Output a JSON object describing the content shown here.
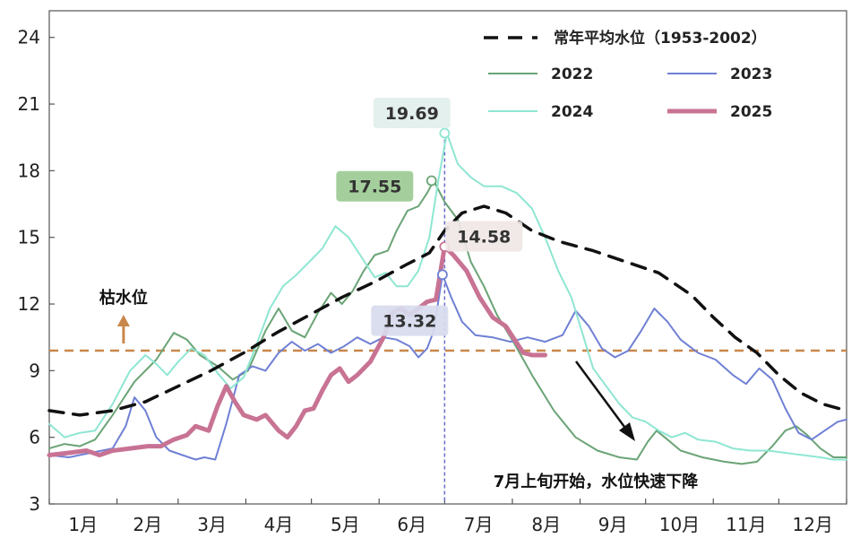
{
  "chart_data": {
    "type": "line",
    "x_unit_label": "月",
    "x_tick_labels": [
      "1月",
      "2月",
      "3月",
      "4月",
      "5月",
      "6月",
      "7月",
      "8月",
      "9月",
      "10月",
      "11月",
      "12月"
    ],
    "yticks": [
      3,
      6,
      9,
      12,
      15,
      18,
      21,
      24
    ],
    "ylim": [
      3,
      25.2
    ],
    "xlim": [
      1,
      366
    ],
    "legend": {
      "average_label": "常年平均水位（1953-2002）",
      "series_labels": [
        "2022",
        "2023",
        "2024",
        "2025"
      ]
    },
    "threshold": {
      "value": 9.9,
      "label": "枯水位",
      "color": "#c8874a"
    },
    "marker_day": 182,
    "callouts": [
      {
        "series": "2024",
        "day": 182,
        "value": 19.69,
        "label": "19.69",
        "bg": "#e2efec"
      },
      {
        "series": "2022",
        "day": 176,
        "value": 17.55,
        "label": "17.55",
        "bg": "#9ccb94"
      },
      {
        "series": "2025",
        "day": 182,
        "value": 14.58,
        "label": "14.58",
        "bg": "#f0e6e6"
      },
      {
        "series": "2023",
        "day": 181,
        "value": 13.32,
        "label": "13.32",
        "bg": "#d7dbee"
      }
    ],
    "annotation": "7月上旬开始，水位快速下降",
    "series": [
      {
        "name": "常年平均水位（1953-2002）",
        "color": "#111111",
        "dash": true,
        "width": 3.5,
        "points": [
          [
            1,
            7.2
          ],
          [
            15,
            7.0
          ],
          [
            30,
            7.2
          ],
          [
            45,
            7.6
          ],
          [
            60,
            8.3
          ],
          [
            75,
            9.0
          ],
          [
            90,
            9.8
          ],
          [
            105,
            10.7
          ],
          [
            120,
            11.5
          ],
          [
            135,
            12.3
          ],
          [
            150,
            13.0
          ],
          [
            165,
            13.8
          ],
          [
            175,
            14.3
          ],
          [
            182,
            15.3
          ],
          [
            190,
            16.1
          ],
          [
            200,
            16.4
          ],
          [
            210,
            16.1
          ],
          [
            222,
            15.3
          ],
          [
            235,
            14.8
          ],
          [
            250,
            14.4
          ],
          [
            265,
            13.9
          ],
          [
            280,
            13.4
          ],
          [
            295,
            12.4
          ],
          [
            305,
            11.4
          ],
          [
            315,
            10.5
          ],
          [
            325,
            9.8
          ],
          [
            335,
            8.8
          ],
          [
            345,
            8.0
          ],
          [
            355,
            7.5
          ],
          [
            366,
            7.2
          ]
        ]
      },
      {
        "name": "2022",
        "color": "#6aa476",
        "dash": false,
        "width": 2,
        "points": [
          [
            1,
            5.5
          ],
          [
            8,
            5.7
          ],
          [
            15,
            5.6
          ],
          [
            22,
            5.9
          ],
          [
            30,
            7.0
          ],
          [
            40,
            8.5
          ],
          [
            50,
            9.5
          ],
          [
            58,
            10.7
          ],
          [
            64,
            10.4
          ],
          [
            70,
            9.7
          ],
          [
            78,
            9.2
          ],
          [
            85,
            8.6
          ],
          [
            92,
            9.0
          ],
          [
            100,
            10.8
          ],
          [
            106,
            11.8
          ],
          [
            112,
            10.8
          ],
          [
            118,
            10.5
          ],
          [
            124,
            11.6
          ],
          [
            130,
            12.5
          ],
          [
            135,
            12.0
          ],
          [
            140,
            12.6
          ],
          [
            145,
            13.5
          ],
          [
            150,
            14.2
          ],
          [
            156,
            14.4
          ],
          [
            160,
            15.3
          ],
          [
            165,
            16.2
          ],
          [
            170,
            16.4
          ],
          [
            174,
            17.0
          ],
          [
            177,
            17.55
          ],
          [
            182,
            16.6
          ],
          [
            188,
            15.8
          ],
          [
            194,
            13.9
          ],
          [
            200,
            12.8
          ],
          [
            206,
            11.5
          ],
          [
            214,
            10.2
          ],
          [
            222,
            8.8
          ],
          [
            232,
            7.2
          ],
          [
            242,
            6.0
          ],
          [
            252,
            5.4
          ],
          [
            262,
            5.1
          ],
          [
            270,
            5.0
          ],
          [
            275,
            5.8
          ],
          [
            279,
            6.3
          ],
          [
            284,
            5.9
          ],
          [
            290,
            5.4
          ],
          [
            300,
            5.1
          ],
          [
            310,
            4.9
          ],
          [
            318,
            4.8
          ],
          [
            325,
            4.9
          ],
          [
            332,
            5.6
          ],
          [
            338,
            6.3
          ],
          [
            343,
            6.5
          ],
          [
            348,
            6.1
          ],
          [
            354,
            5.5
          ],
          [
            360,
            5.1
          ],
          [
            366,
            5.1
          ]
        ]
      },
      {
        "name": "2023",
        "color": "#6f80d4",
        "dash": false,
        "width": 2,
        "points": [
          [
            1,
            5.2
          ],
          [
            10,
            5.1
          ],
          [
            20,
            5.3
          ],
          [
            30,
            5.5
          ],
          [
            36,
            6.5
          ],
          [
            40,
            7.8
          ],
          [
            45,
            7.2
          ],
          [
            50,
            6.0
          ],
          [
            56,
            5.4
          ],
          [
            62,
            5.2
          ],
          [
            68,
            5.0
          ],
          [
            72,
            5.1
          ],
          [
            77,
            5.0
          ],
          [
            82,
            6.6
          ],
          [
            88,
            8.8
          ],
          [
            94,
            9.2
          ],
          [
            100,
            9.0
          ],
          [
            106,
            9.8
          ],
          [
            112,
            10.3
          ],
          [
            118,
            9.9
          ],
          [
            124,
            10.2
          ],
          [
            130,
            9.8
          ],
          [
            136,
            10.1
          ],
          [
            142,
            10.5
          ],
          [
            148,
            10.2
          ],
          [
            154,
            10.5
          ],
          [
            160,
            10.4
          ],
          [
            166,
            10.1
          ],
          [
            170,
            9.6
          ],
          [
            174,
            10.0
          ],
          [
            177,
            10.8
          ],
          [
            181,
            13.32
          ],
          [
            185,
            12.3
          ],
          [
            190,
            11.2
          ],
          [
            196,
            10.6
          ],
          [
            204,
            10.5
          ],
          [
            212,
            10.3
          ],
          [
            220,
            10.5
          ],
          [
            228,
            10.3
          ],
          [
            236,
            10.6
          ],
          [
            242,
            11.7
          ],
          [
            248,
            11.0
          ],
          [
            254,
            10.0
          ],
          [
            260,
            9.6
          ],
          [
            266,
            9.9
          ],
          [
            272,
            10.8
          ],
          [
            278,
            11.8
          ],
          [
            284,
            11.2
          ],
          [
            290,
            10.4
          ],
          [
            298,
            9.8
          ],
          [
            306,
            9.5
          ],
          [
            314,
            8.8
          ],
          [
            320,
            8.4
          ],
          [
            326,
            9.1
          ],
          [
            332,
            8.6
          ],
          [
            338,
            7.3
          ],
          [
            344,
            6.2
          ],
          [
            350,
            5.9
          ],
          [
            356,
            6.3
          ],
          [
            362,
            6.7
          ],
          [
            366,
            6.8
          ]
        ]
      },
      {
        "name": "2024",
        "color": "#8ee6d2",
        "dash": false,
        "width": 2,
        "points": [
          [
            1,
            6.6
          ],
          [
            8,
            6.0
          ],
          [
            15,
            6.2
          ],
          [
            22,
            6.3
          ],
          [
            30,
            7.5
          ],
          [
            38,
            9.0
          ],
          [
            45,
            9.7
          ],
          [
            50,
            9.3
          ],
          [
            55,
            8.8
          ],
          [
            60,
            9.4
          ],
          [
            66,
            10.0
          ],
          [
            72,
            9.7
          ],
          [
            78,
            8.9
          ],
          [
            84,
            8.2
          ],
          [
            90,
            8.7
          ],
          [
            96,
            10.2
          ],
          [
            102,
            11.8
          ],
          [
            108,
            12.8
          ],
          [
            114,
            13.3
          ],
          [
            120,
            13.9
          ],
          [
            126,
            14.5
          ],
          [
            132,
            15.5
          ],
          [
            138,
            15.0
          ],
          [
            144,
            14.1
          ],
          [
            150,
            13.2
          ],
          [
            155,
            13.4
          ],
          [
            160,
            12.8
          ],
          [
            165,
            12.8
          ],
          [
            170,
            13.5
          ],
          [
            175,
            15.0
          ],
          [
            179,
            17.5
          ],
          [
            183,
            19.69
          ],
          [
            188,
            18.3
          ],
          [
            194,
            17.7
          ],
          [
            200,
            17.3
          ],
          [
            208,
            17.3
          ],
          [
            215,
            17.0
          ],
          [
            222,
            16.3
          ],
          [
            228,
            15.0
          ],
          [
            234,
            13.5
          ],
          [
            240,
            12.3
          ],
          [
            245,
            10.7
          ],
          [
            250,
            9.1
          ],
          [
            256,
            8.3
          ],
          [
            262,
            7.5
          ],
          [
            268,
            6.9
          ],
          [
            274,
            6.7
          ],
          [
            280,
            6.3
          ],
          [
            286,
            6.0
          ],
          [
            292,
            6.2
          ],
          [
            298,
            5.9
          ],
          [
            306,
            5.8
          ],
          [
            314,
            5.5
          ],
          [
            322,
            5.4
          ],
          [
            330,
            5.4
          ],
          [
            338,
            5.3
          ],
          [
            346,
            5.2
          ],
          [
            354,
            5.1
          ],
          [
            360,
            5.0
          ],
          [
            366,
            5.0
          ]
        ]
      },
      {
        "name": "2025",
        "color": "#c87394",
        "dash": false,
        "width": 5,
        "points": [
          [
            1,
            5.2
          ],
          [
            10,
            5.3
          ],
          [
            18,
            5.4
          ],
          [
            24,
            5.2
          ],
          [
            30,
            5.4
          ],
          [
            38,
            5.5
          ],
          [
            46,
            5.6
          ],
          [
            52,
            5.6
          ],
          [
            58,
            5.9
          ],
          [
            64,
            6.1
          ],
          [
            68,
            6.5
          ],
          [
            74,
            6.3
          ],
          [
            78,
            7.4
          ],
          [
            82,
            8.3
          ],
          [
            86,
            7.6
          ],
          [
            90,
            7.0
          ],
          [
            96,
            6.8
          ],
          [
            100,
            7.0
          ],
          [
            106,
            6.3
          ],
          [
            110,
            6.0
          ],
          [
            114,
            6.5
          ],
          [
            118,
            7.2
          ],
          [
            122,
            7.3
          ],
          [
            126,
            8.1
          ],
          [
            130,
            8.8
          ],
          [
            134,
            9.1
          ],
          [
            138,
            8.5
          ],
          [
            142,
            8.8
          ],
          [
            148,
            9.4
          ],
          [
            154,
            10.5
          ],
          [
            158,
            11.6
          ],
          [
            162,
            11.8
          ],
          [
            166,
            11.5
          ],
          [
            170,
            11.8
          ],
          [
            174,
            12.1
          ],
          [
            178,
            12.2
          ],
          [
            182,
            14.58
          ],
          [
            186,
            14.2
          ],
          [
            192,
            13.5
          ],
          [
            198,
            12.3
          ],
          [
            204,
            11.4
          ],
          [
            210,
            11.0
          ],
          [
            214,
            10.4
          ],
          [
            218,
            9.8
          ],
          [
            222,
            9.7
          ],
          [
            228,
            9.7
          ]
        ]
      }
    ]
  }
}
